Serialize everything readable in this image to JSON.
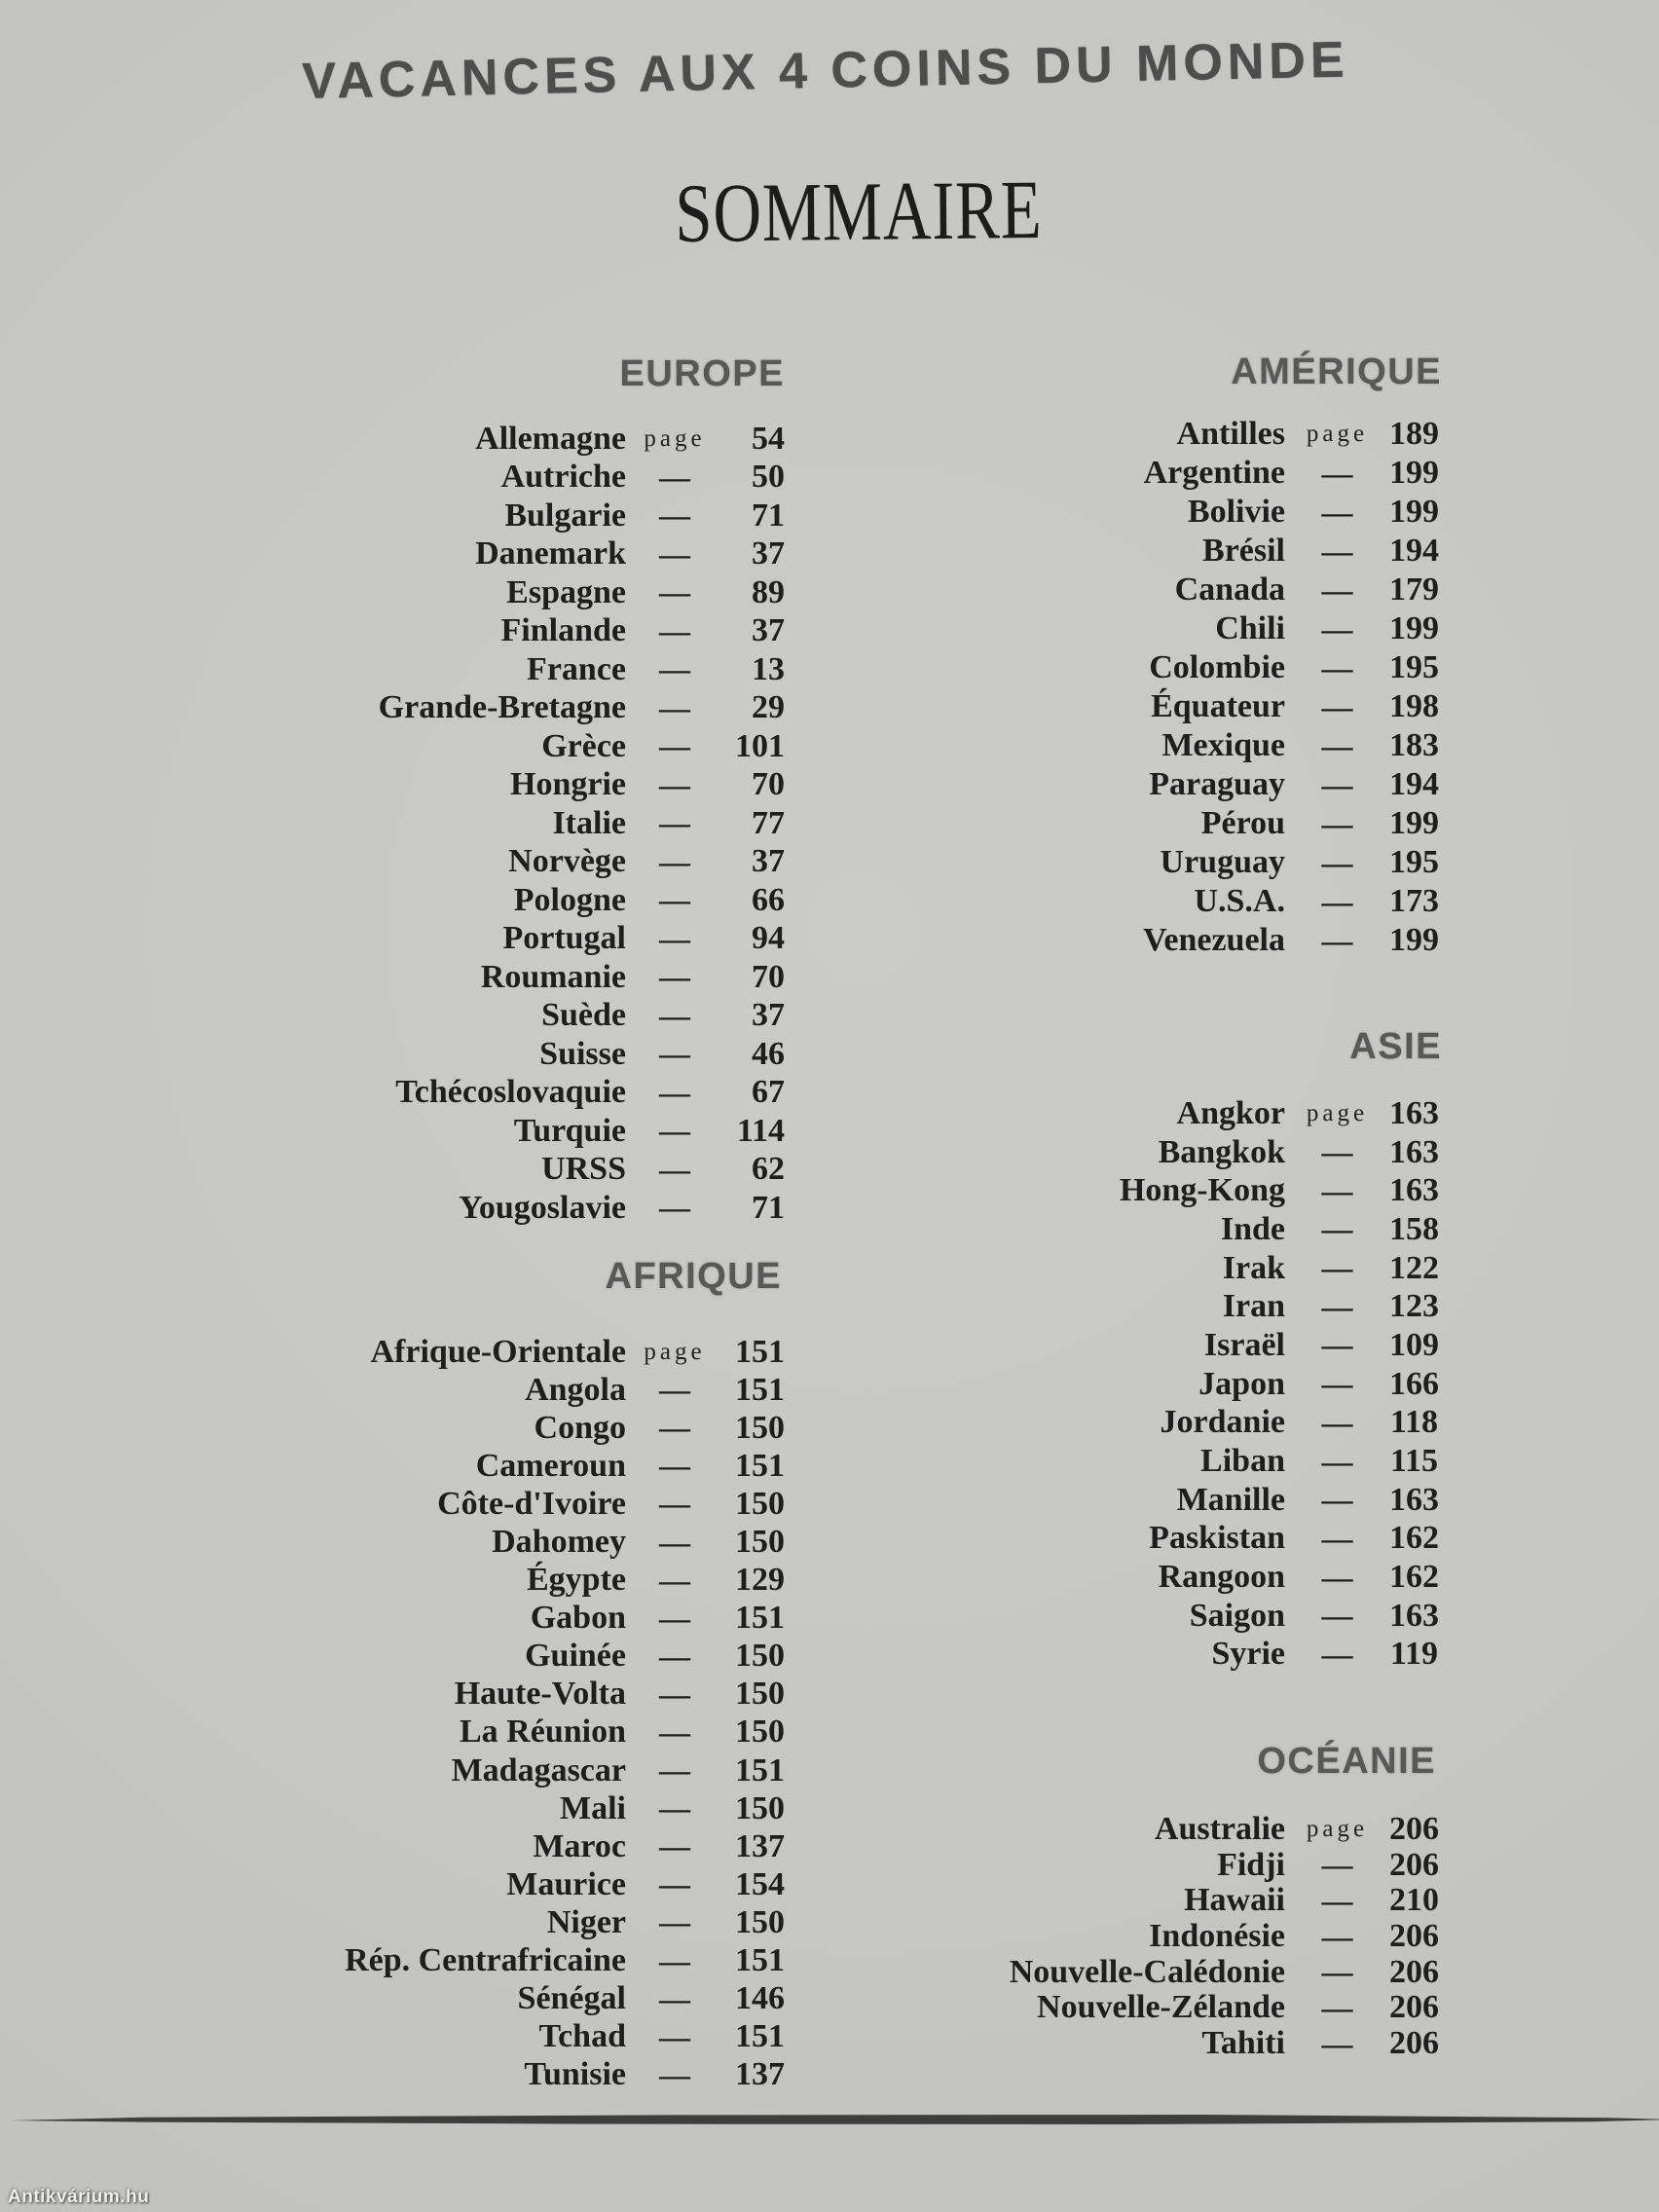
{
  "title": "VACANCES AUX 4 COINS DU MONDE",
  "heading": "SOMMAIRE",
  "page_word": "page",
  "dash": "—",
  "watermark": "Antikvárium.hu",
  "colors": {
    "paper": "#c6c6c4",
    "ink": "#1e1e1e",
    "section_header_gray": "#585858",
    "title_gray": "#4d4d4d",
    "rule": "#3e3e3e"
  },
  "sections": {
    "europe": {
      "name": "EUROPE",
      "entries": [
        {
          "country": "Allemagne",
          "sep": "page",
          "page": "54"
        },
        {
          "country": "Autriche",
          "sep": "—",
          "page": "50"
        },
        {
          "country": "Bulgarie",
          "sep": "—",
          "page": "71"
        },
        {
          "country": "Danemark",
          "sep": "—",
          "page": "37"
        },
        {
          "country": "Espagne",
          "sep": "—",
          "page": "89"
        },
        {
          "country": "Finlande",
          "sep": "—",
          "page": "37"
        },
        {
          "country": "France",
          "sep": "—",
          "page": "13"
        },
        {
          "country": "Grande-Bretagne",
          "sep": "—",
          "page": "29"
        },
        {
          "country": "Grèce",
          "sep": "—",
          "page": "101"
        },
        {
          "country": "Hongrie",
          "sep": "—",
          "page": "70"
        },
        {
          "country": "Italie",
          "sep": "—",
          "page": "77"
        },
        {
          "country": "Norvège",
          "sep": "—",
          "page": "37"
        },
        {
          "country": "Pologne",
          "sep": "—",
          "page": "66"
        },
        {
          "country": "Portugal",
          "sep": "—",
          "page": "94"
        },
        {
          "country": "Roumanie",
          "sep": "—",
          "page": "70"
        },
        {
          "country": "Suède",
          "sep": "—",
          "page": "37"
        },
        {
          "country": "Suisse",
          "sep": "—",
          "page": "46"
        },
        {
          "country": "Tchécoslovaquie",
          "sep": "—",
          "page": "67"
        },
        {
          "country": "Turquie",
          "sep": "—",
          "page": "114"
        },
        {
          "country": "URSS",
          "sep": "—",
          "page": "62"
        },
        {
          "country": "Yougoslavie",
          "sep": "—",
          "page": "71"
        }
      ]
    },
    "afrique": {
      "name": "AFRIQUE",
      "entries": [
        {
          "country": "Afrique-Orientale",
          "sep": "page",
          "page": "151"
        },
        {
          "country": "Angola",
          "sep": "—",
          "page": "151"
        },
        {
          "country": "Congo",
          "sep": "—",
          "page": "150"
        },
        {
          "country": "Cameroun",
          "sep": "—",
          "page": "151"
        },
        {
          "country": "Côte-d'Ivoire",
          "sep": "—",
          "page": "150"
        },
        {
          "country": "Dahomey",
          "sep": "—",
          "page": "150"
        },
        {
          "country": "Égypte",
          "sep": "—",
          "page": "129"
        },
        {
          "country": "Gabon",
          "sep": "—",
          "page": "151"
        },
        {
          "country": "Guinée",
          "sep": "—",
          "page": "150"
        },
        {
          "country": "Haute-Volta",
          "sep": "—",
          "page": "150"
        },
        {
          "country": "La Réunion",
          "sep": "—",
          "page": "150"
        },
        {
          "country": "Madagascar",
          "sep": "—",
          "page": "151"
        },
        {
          "country": "Mali",
          "sep": "—",
          "page": "150"
        },
        {
          "country": "Maroc",
          "sep": "—",
          "page": "137"
        },
        {
          "country": "Maurice",
          "sep": "—",
          "page": "154"
        },
        {
          "country": "Niger",
          "sep": "—",
          "page": "150"
        },
        {
          "country": "Rép. Centrafricaine",
          "sep": "—",
          "page": "151"
        },
        {
          "country": "Sénégal",
          "sep": "—",
          "page": "146"
        },
        {
          "country": "Tchad",
          "sep": "—",
          "page": "151"
        },
        {
          "country": "Tunisie",
          "sep": "—",
          "page": "137"
        }
      ]
    },
    "amerique": {
      "name": "AMÉRIQUE",
      "entries": [
        {
          "country": "Antilles",
          "sep": "page",
          "page": "189"
        },
        {
          "country": "Argentine",
          "sep": "—",
          "page": "199"
        },
        {
          "country": "Bolivie",
          "sep": "—",
          "page": "199"
        },
        {
          "country": "Brésil",
          "sep": "—",
          "page": "194"
        },
        {
          "country": "Canada",
          "sep": "—",
          "page": "179"
        },
        {
          "country": "Chili",
          "sep": "—",
          "page": "199"
        },
        {
          "country": "Colombie",
          "sep": "—",
          "page": "195"
        },
        {
          "country": "Équateur",
          "sep": "—",
          "page": "198"
        },
        {
          "country": "Mexique",
          "sep": "—",
          "page": "183"
        },
        {
          "country": "Paraguay",
          "sep": "—",
          "page": "194"
        },
        {
          "country": "Pérou",
          "sep": "—",
          "page": "199"
        },
        {
          "country": "Uruguay",
          "sep": "—",
          "page": "195"
        },
        {
          "country": "U.S.A.",
          "sep": "—",
          "page": "173"
        },
        {
          "country": "Venezuela",
          "sep": "—",
          "page": "199"
        }
      ]
    },
    "asie": {
      "name": "ASIE",
      "entries": [
        {
          "country": "Angkor",
          "sep": "page",
          "page": "163"
        },
        {
          "country": "Bangkok",
          "sep": "—",
          "page": "163"
        },
        {
          "country": "Hong-Kong",
          "sep": "—",
          "page": "163"
        },
        {
          "country": "Inde",
          "sep": "—",
          "page": "158"
        },
        {
          "country": "Irak",
          "sep": "—",
          "page": "122"
        },
        {
          "country": "Iran",
          "sep": "—",
          "page": "123"
        },
        {
          "country": "Israël",
          "sep": "—",
          "page": "109"
        },
        {
          "country": "Japon",
          "sep": "—",
          "page": "166"
        },
        {
          "country": "Jordanie",
          "sep": "—",
          "page": "118"
        },
        {
          "country": "Liban",
          "sep": "—",
          "page": "115"
        },
        {
          "country": "Manille",
          "sep": "—",
          "page": "163"
        },
        {
          "country": "Paskistan",
          "sep": "—",
          "page": "162"
        },
        {
          "country": "Rangoon",
          "sep": "—",
          "page": "162"
        },
        {
          "country": "Saigon",
          "sep": "—",
          "page": "163"
        },
        {
          "country": "Syrie",
          "sep": "—",
          "page": "119"
        }
      ]
    },
    "oceanie": {
      "name": "OCÉANIE",
      "entries": [
        {
          "country": "Australie",
          "sep": "page",
          "page": "206"
        },
        {
          "country": "Fidji",
          "sep": "—",
          "page": "206"
        },
        {
          "country": "Hawaii",
          "sep": "—",
          "page": "210"
        },
        {
          "country": "Indonésie",
          "sep": "—",
          "page": "206"
        },
        {
          "country": "Nouvelle-Calédonie",
          "sep": "—",
          "page": "206"
        },
        {
          "country": "Nouvelle-Zélande",
          "sep": "—",
          "page": "206"
        },
        {
          "country": "Tahiti",
          "sep": "—",
          "page": "206"
        }
      ]
    }
  }
}
